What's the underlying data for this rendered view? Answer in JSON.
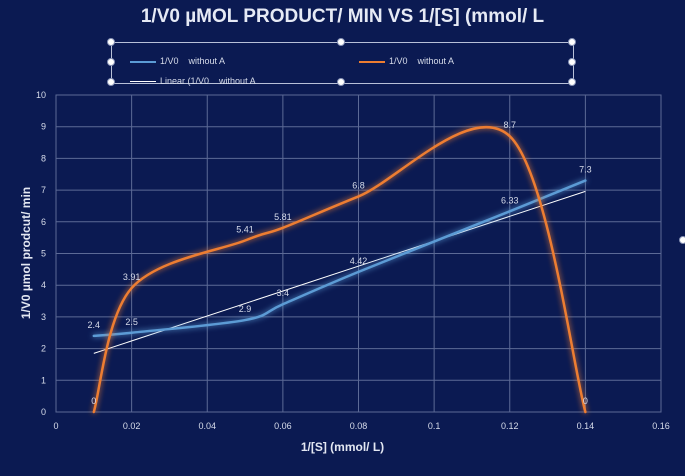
{
  "chart_data": {
    "type": "line",
    "title": "1/V0 µMOL PRODUCT/ MIN VS 1/[S] (mmol/ L",
    "xlabel": "1/[S] (mmol/ L)",
    "ylabel": "1/V0  µmol  prodcut/ min",
    "xlim": [
      0,
      0.16
    ],
    "ylim": [
      0,
      10
    ],
    "xticks": [
      0,
      0.02,
      0.04,
      0.06,
      0.08,
      0.1,
      0.12,
      0.14,
      0.16
    ],
    "xtick_labels": [
      "0",
      "0.02",
      "0.04",
      "0.06",
      "0.08",
      "0.1",
      "0.12",
      "0.14",
      "0.16"
    ],
    "yticks": [
      0,
      1,
      2,
      3,
      4,
      5,
      6,
      7,
      8,
      9,
      10
    ],
    "ytick_labels": [
      "0",
      "1",
      "2",
      "3",
      "4",
      "5",
      "6",
      "7",
      "8",
      "9",
      "10"
    ],
    "grid": true,
    "legend_position": "top",
    "series": [
      {
        "name": "1/V0    without A",
        "color": "#5b9bd5",
        "x": [
          0.01,
          0.02,
          0.05,
          0.06,
          0.08,
          0.12,
          0.14
        ],
        "y": [
          2.4,
          2.5,
          2.9,
          3.4,
          4.42,
          6.33,
          7.3
        ],
        "labels": [
          "2.4",
          "2.5",
          "2.9",
          "3.4",
          "4.42",
          "6.33",
          "7.3"
        ]
      },
      {
        "name": "1/V0    without A",
        "color": "#ed7d31",
        "x": [
          0.01,
          0.02,
          0.05,
          0.06,
          0.08,
          0.12,
          0.14
        ],
        "y": [
          0,
          3.91,
          5.41,
          5.81,
          6.8,
          8.7,
          0
        ],
        "labels": [
          "0",
          "3.91",
          "5.41",
          "5.81",
          "6.8",
          "8.7",
          "0"
        ]
      }
    ],
    "trendline": {
      "name": "Linear (1/V0    without A",
      "color": "#ffffff",
      "x": [
        0.01,
        0.14
      ],
      "y": [
        1.85,
        6.96
      ]
    }
  }
}
